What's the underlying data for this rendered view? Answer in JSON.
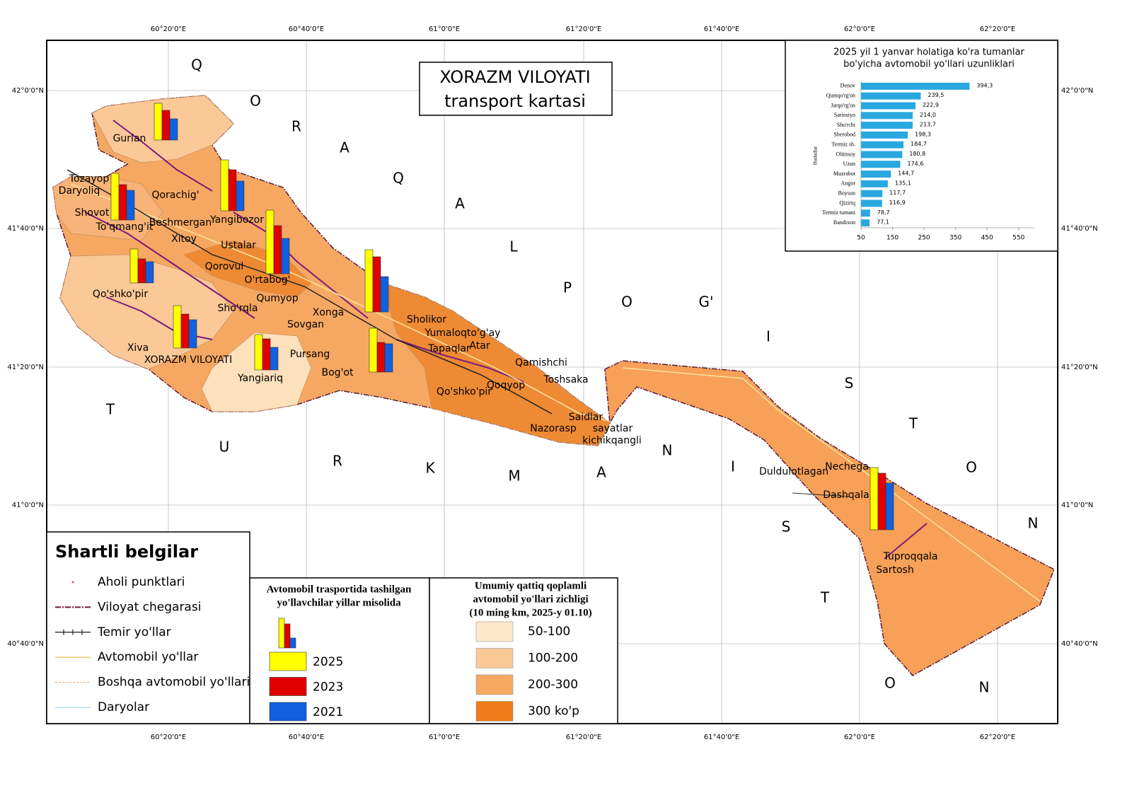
{
  "map_title": [
    "XORAZM VILOYATI",
    "transport kartasi"
  ],
  "lon_labels": [
    "60°20'0\"E",
    "60°40'0\"E",
    "61°0'0\"E",
    "61°20'0\"E",
    "61°40'0\"E",
    "62°0'0\"E",
    "62°20'0\"E"
  ],
  "lat_labels": [
    "42°0'0\"N",
    "41°40'0\"N",
    "41°20'0\"N",
    "41°0'0\"N",
    "40°40'0\"N"
  ],
  "region_letters_north": [
    "Q",
    "O",
    "R",
    "A",
    "Q",
    "A",
    "L",
    "P",
    "O",
    "G'",
    "I",
    "S",
    "T",
    "O",
    "N"
  ],
  "region_letters_south": [
    "T",
    "U",
    "R",
    "K",
    "M",
    "A",
    "N",
    "I",
    "S",
    "T",
    "O",
    "N"
  ],
  "places": [
    "Gurlan",
    "Tozayop",
    "Daryoliq",
    "Qorachig'",
    "Shovot",
    "To'qmang'it",
    "Beshmergan",
    "Yangibozor",
    "Xitoy",
    "Ustalar",
    "Qorovul",
    "O'rtabog'",
    "Qo'shko'pir",
    "Qumyop",
    "Sho'rqla",
    "Xonga",
    "Sovgan",
    "Sholikor",
    "Yumaloqto'g'ay",
    "Atar",
    "Tapaqlar",
    "Xiva",
    "Pursang",
    "XORAZM VILOYATI",
    "Qamishchi",
    "Bog'ot",
    "Yangiariq",
    "Toshsaka",
    "Qoqyop",
    "Qo'shko'pir",
    "Saidlar",
    "Nazorasp",
    "sayatlar",
    "kichikqangli",
    "Duldulotlagan",
    "Nechega",
    "Dashqala",
    "Tuproqqala",
    "Sartosh"
  ],
  "passenger_bars": {
    "title": [
      "Avtomobil trasportida tashilgan",
      "yo'llavchilar yillar misolida"
    ],
    "series": [
      {
        "name": "2025",
        "color": "#ffff00",
        "values": [
          52,
          72,
          66,
          90,
          88,
          48,
          60,
          50,
          62,
          88
        ]
      },
      {
        "name": "2023",
        "color": "#e00000",
        "values": [
          42,
          58,
          50,
          68,
          78,
          34,
          48,
          44,
          42,
          80
        ]
      },
      {
        "name": "2021",
        "color": "#1060e0",
        "values": [
          30,
          42,
          42,
          50,
          50,
          30,
          40,
          32,
          40,
          66
        ]
      }
    ]
  },
  "density_legend": {
    "title": [
      "Umumiy qattiq qoplamli",
      "avtomobil yo'llari zichligi",
      "(10 ming  km, 2025-y 01.10)"
    ],
    "classes": [
      {
        "label": "50-100",
        "color": "#fde8cc"
      },
      {
        "label": "100-200",
        "color": "#fbc898"
      },
      {
        "label": "200-300",
        "color": "#f6a862"
      },
      {
        "label": "300  ko'p",
        "color": "#ee7c1a"
      }
    ]
  },
  "legend": {
    "title": "Shartli belgilar",
    "items": [
      "Aholi punktlari",
      "Viloyat chegarasi",
      "Temir yo'llar",
      "Avtomobil yo'llar",
      "Boshqa avtomobil yo'llari",
      "Daryolar"
    ]
  },
  "chart_data": {
    "type": "bar",
    "orientation": "horizontal",
    "title": [
      "2025 yil 1 yanvar holatiga ko'ra tumanlar",
      "bo'yicha avtomobil yo'llari uzunliklari"
    ],
    "y_label": "Hududlar",
    "categories": [
      "Denov",
      "Qumqo'rg'on",
      "Jarqo'rg'on",
      "Sariosiyo",
      "Sho'rchi",
      "Sherobod",
      "Termiz sh.",
      "Oltinsoy",
      "Uzun",
      "Muzrabot",
      "Angor",
      "Boysun",
      "Qiziriq",
      "Termiz tumani",
      "Bandixon"
    ],
    "values": [
      394.3,
      239.5,
      222.9,
      214.0,
      213.7,
      198.3,
      184.7,
      180.8,
      174.6,
      144.7,
      135.1,
      117.7,
      116.9,
      78.7,
      77.1
    ],
    "value_labels": [
      "394,3",
      "239,5",
      "222,9",
      "214,0",
      "213,7",
      "198,3",
      "184,7",
      "180,8",
      "174,6",
      "144,7",
      "135,1",
      "117,7",
      "116,9",
      "78,7",
      "77,1"
    ],
    "color": "#29a8e0",
    "xlim": [
      50,
      600
    ],
    "xticks": [
      50,
      150,
      250,
      350,
      450,
      550
    ]
  }
}
